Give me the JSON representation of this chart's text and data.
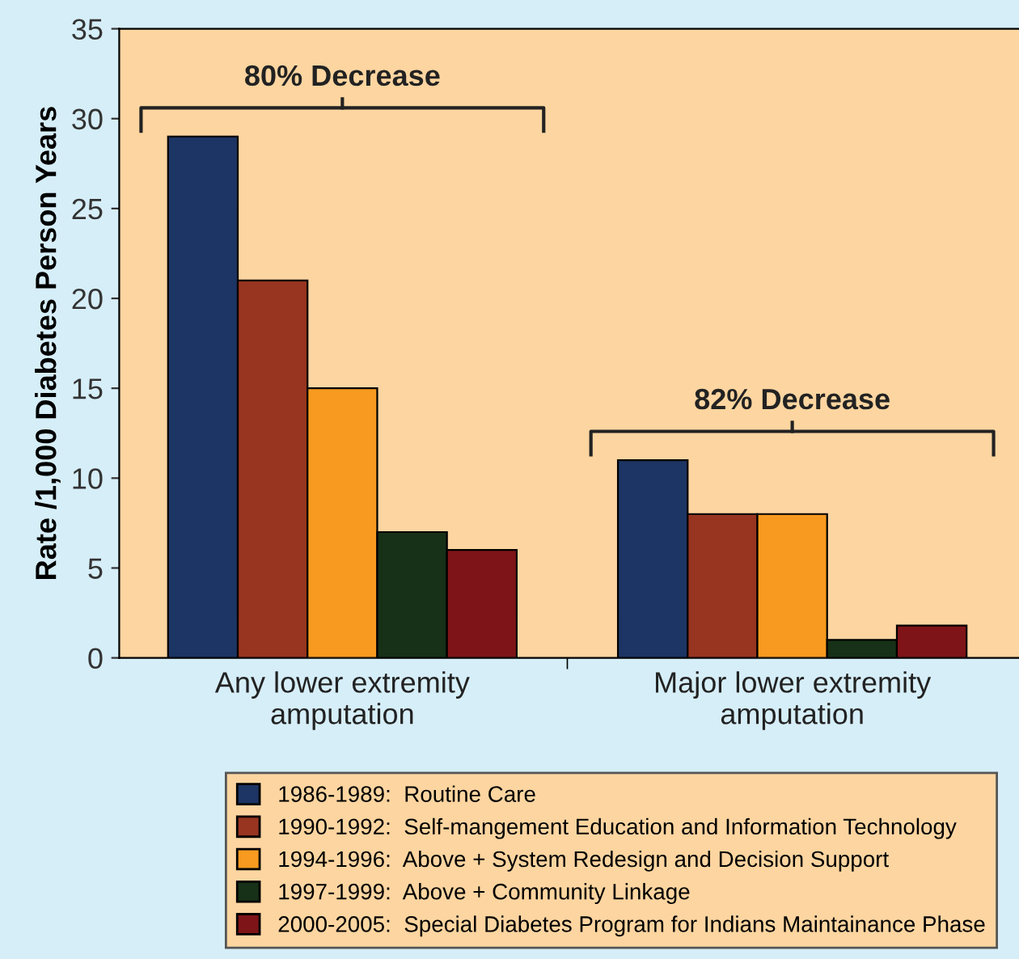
{
  "chart_data": {
    "type": "bar",
    "ylabel": "Rate /1,000 Diabetes Person Years",
    "categories": [
      "Any lower extremity\namputation",
      "Major lower extremity\namputation"
    ],
    "series": [
      {
        "name": "1986-1989:  Routine Care",
        "color": "#1c3564",
        "values": [
          29,
          11
        ]
      },
      {
        "name": "1990-1992:  Self-mangement Education and Information Technology",
        "color": "#973520",
        "values": [
          21,
          8
        ]
      },
      {
        "name": "1994-1996:  Above + System Redesign and Decision Support",
        "color": "#f79a1f",
        "values": [
          15,
          8
        ]
      },
      {
        "name": "1997-1999:  Above + Community Linkage",
        "color": "#163117",
        "values": [
          7,
          1
        ]
      },
      {
        "name": "2000-2005:  Special Diabetes Program for Indians Maintainance Phase",
        "color": "#7e1418",
        "values": [
          6,
          1.8
        ]
      }
    ],
    "annotations": [
      "80% Decrease",
      "82% Decrease"
    ],
    "ylim": [
      0,
      35
    ],
    "yticks": [
      0,
      5,
      10,
      15,
      20,
      25,
      30,
      35
    ],
    "grid": false,
    "legend": "bottom"
  }
}
